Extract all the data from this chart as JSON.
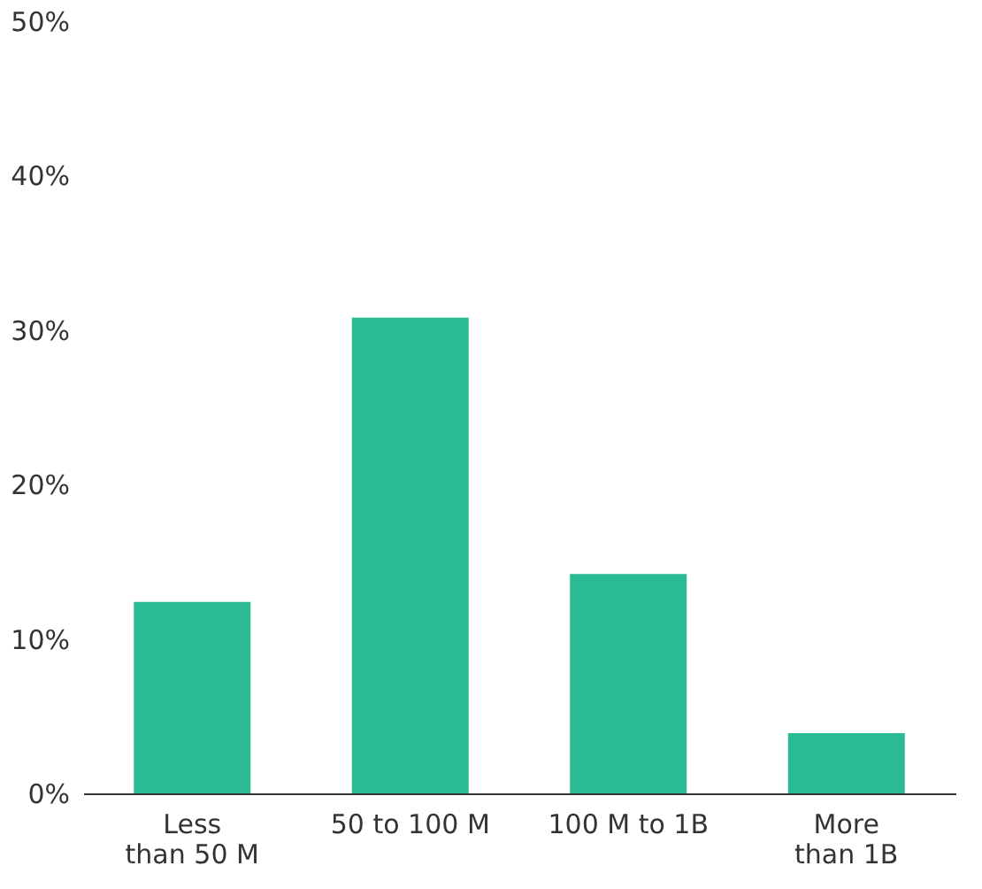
{
  "chart_data": {
    "type": "bar",
    "categories": [
      "Less\nthan 50 M",
      "50 to 100 M",
      "100 M to 1B",
      "More\nthan 1B"
    ],
    "values": [
      12.4,
      30.8,
      14.2,
      3.9
    ],
    "color": "#2bbb94",
    "ylim": [
      0,
      50
    ],
    "yticks": [
      {
        "value": 0,
        "label": "0%"
      },
      {
        "value": 10,
        "label": "10%"
      },
      {
        "value": 20,
        "label": "20%"
      },
      {
        "value": 30,
        "label": "30%"
      },
      {
        "value": 40,
        "label": "40%"
      },
      {
        "value": 50,
        "label": "50%"
      }
    ],
    "grid": false
  }
}
